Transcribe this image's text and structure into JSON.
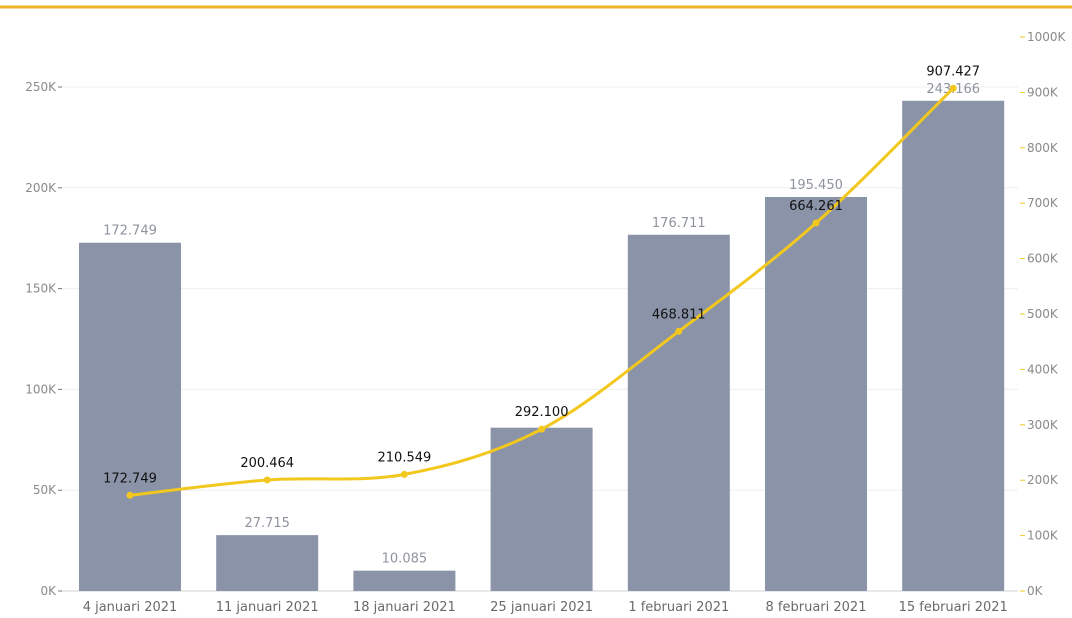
{
  "chart_data": {
    "type": "bar",
    "categories": [
      "4 januari 2021",
      "11 januari 2021",
      "18 januari 2021",
      "25 januari 2021",
      "1 februari 2021",
      "8 februari 2021",
      "15 februari 2021"
    ],
    "series": [
      {
        "type": "bar",
        "axis": "left",
        "color": "#8a93a8",
        "values": [
          172749,
          27715,
          10085,
          81000,
          176711,
          195450,
          243166
        ],
        "labels": [
          "172.749",
          "27.715",
          "10.085",
          "",
          "176.711",
          "195.450",
          "243.166"
        ]
      },
      {
        "type": "line",
        "axis": "right",
        "color": "#f2c81e",
        "values": [
          172749,
          200464,
          210549,
          292100,
          468811,
          664261,
          907427
        ],
        "labels": [
          "172.749",
          "200.464",
          "210.549",
          "292.100",
          "468.811",
          "664.261",
          "907.427"
        ]
      }
    ],
    "yaxis_left": {
      "ylim": [
        0,
        250000
      ],
      "ticks": [
        0,
        50000,
        100000,
        150000,
        200000,
        250000
      ],
      "tick_labels": [
        "0K",
        "50K",
        "100K",
        "150K",
        "200K",
        "250K"
      ]
    },
    "yaxis_right": {
      "ylim": [
        0,
        1000000
      ],
      "ticks": [
        0,
        100000,
        200000,
        300000,
        400000,
        500000,
        600000,
        700000,
        800000,
        900000,
        1000000
      ],
      "tick_labels": [
        "0K",
        "100K",
        "200K",
        "300K",
        "400K",
        "500K",
        "600K",
        "700K",
        "800K",
        "900K",
        "1000K"
      ]
    },
    "grid": true,
    "accent_color": "#f0b429"
  }
}
